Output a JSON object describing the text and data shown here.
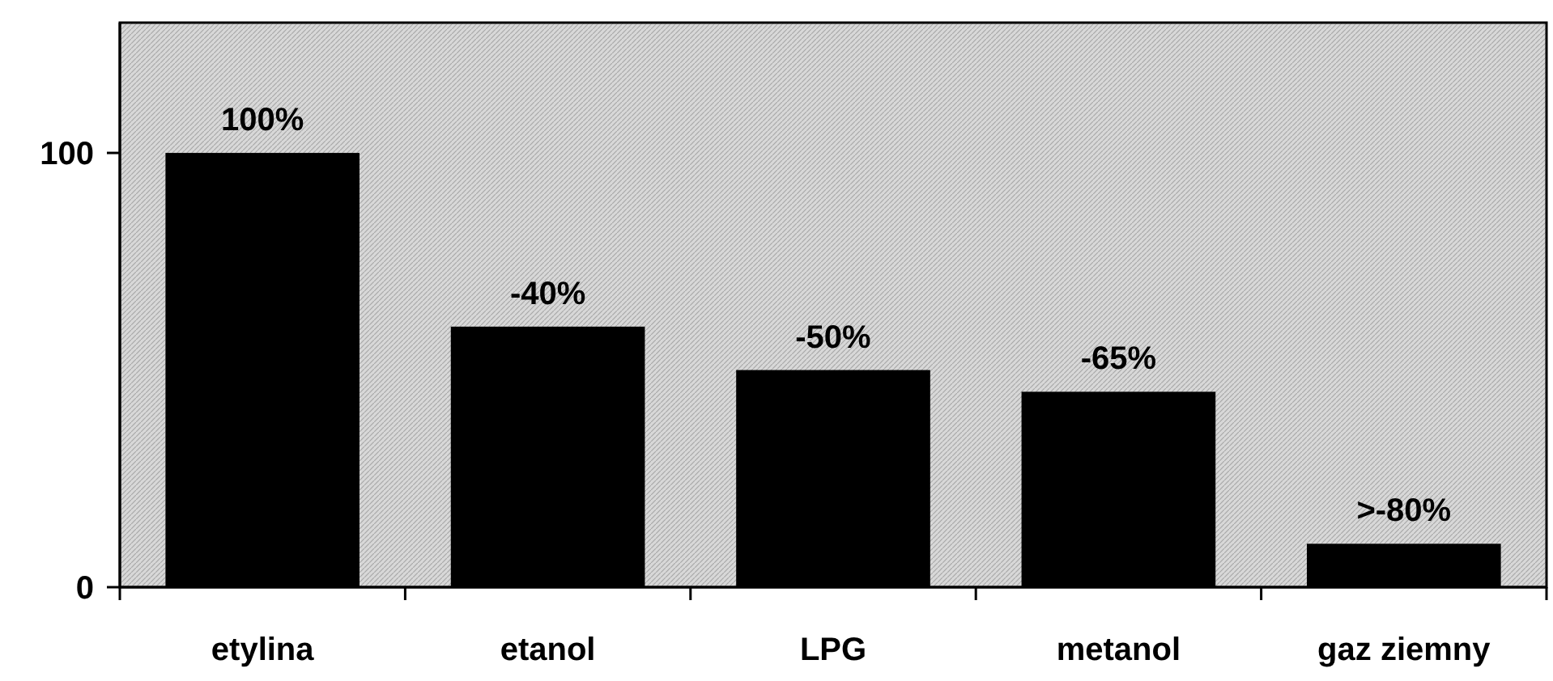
{
  "chart_data": {
    "type": "bar",
    "categories": [
      "etylina",
      "etanol",
      "LPG",
      "metanol",
      "gaz ziemny"
    ],
    "values": [
      100,
      60,
      50,
      45,
      10
    ],
    "annotations": [
      {
        "text": "100%",
        "x": "etylina",
        "y": 100
      },
      {
        "text": "-40%",
        "x": "etanol",
        "y": 60
      },
      {
        "text": "-50%",
        "x": "LPG",
        "y": 50
      },
      {
        "text": "-65%",
        "x": "metanol",
        "y": 45
      },
      {
        "text": ">-80%",
        "x": "gaz ziemny",
        "y": 10
      }
    ],
    "color": "#000000",
    "ylim": [
      0,
      130
    ],
    "yticks": [
      0,
      100
    ],
    "grid": false
  }
}
